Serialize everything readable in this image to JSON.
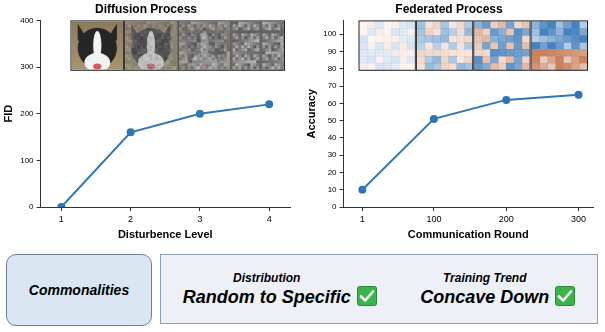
{
  "chart_data": [
    {
      "type": "line",
      "title": "Diffusion Process",
      "x_label": "Disturbence Level",
      "y_label": "FID",
      "x": [
        1,
        2,
        3,
        4
      ],
      "values": [
        0,
        160,
        200,
        220
      ],
      "color": "#2f77b4",
      "marker": "circle",
      "xlim": [
        0.7,
        4.3
      ],
      "xticks": [
        1,
        2,
        3,
        4
      ],
      "ylim": [
        0,
        400
      ],
      "yticks": [
        0,
        100,
        200,
        300,
        400
      ],
      "grid": false
    },
    {
      "type": "line",
      "title": "Federated Process",
      "x_label": "Communication Round",
      "y_label": "Accuracy",
      "x": [
        1,
        100,
        200,
        300
      ],
      "values": [
        10,
        51,
        62,
        65
      ],
      "color": "#2f77b4",
      "marker": "circle",
      "xlim": [
        -25,
        320
      ],
      "xticks": [
        1,
        100,
        200,
        300
      ],
      "ylim": [
        0,
        108
      ],
      "yticks": [
        0,
        10,
        20,
        30,
        40,
        50,
        60,
        70,
        80,
        90,
        100
      ],
      "grid": false
    }
  ],
  "commonalities": {
    "label": "Commonalities",
    "items": [
      {
        "heading": "Distribution",
        "text": "Random to Specific"
      },
      {
        "heading": "Training Trend",
        "text": "Concave Down"
      }
    ]
  }
}
